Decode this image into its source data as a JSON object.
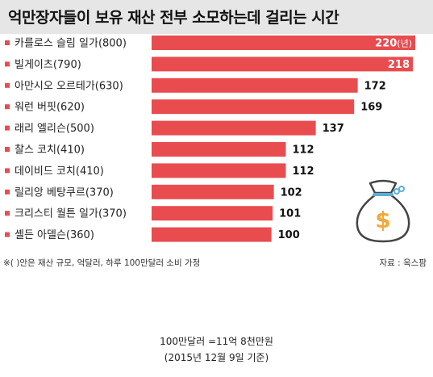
{
  "title": "억만장자들이 보유 재산 전부 소모하는데 걸리는 시간",
  "chart_data": {
    "type": "bar",
    "orientation": "horizontal",
    "title": "억만장자들이 보유 재산 전부 소모하는데 걸리는 시간",
    "categories": [
      "카를로스 슬림 일가(800)",
      "빌게이츠(790)",
      "아만시오 오르테가(630)",
      "워런 버핏(620)",
      "래리 엘리슨(500)",
      "찰스 코치(410)",
      "데이비드 코치(410)",
      "릴리앙 베탕쿠르(370)",
      "크리스티 월튼 일가(370)",
      "셸든 아델슨(360)"
    ],
    "values": [
      220,
      218,
      172,
      169,
      137,
      112,
      112,
      102,
      101,
      100
    ],
    "value_unit_label": "(년)",
    "bar_color": "#e84c4f",
    "grid": false,
    "legend": "none"
  },
  "footnote": "※( )안은 재산 규모, 억달러, 하루 100만달러 소비 가정",
  "source": "자료 : 옥스팜",
  "exchange_note": "100만달러 =11억 8천만원",
  "date_note": "(2015년 12월 9일 기준)",
  "icon": "money-bag-icon",
  "colors": {
    "bar": "#e84c4f",
    "title_band": "#e6e6e6",
    "bag": "#f2a93b"
  }
}
